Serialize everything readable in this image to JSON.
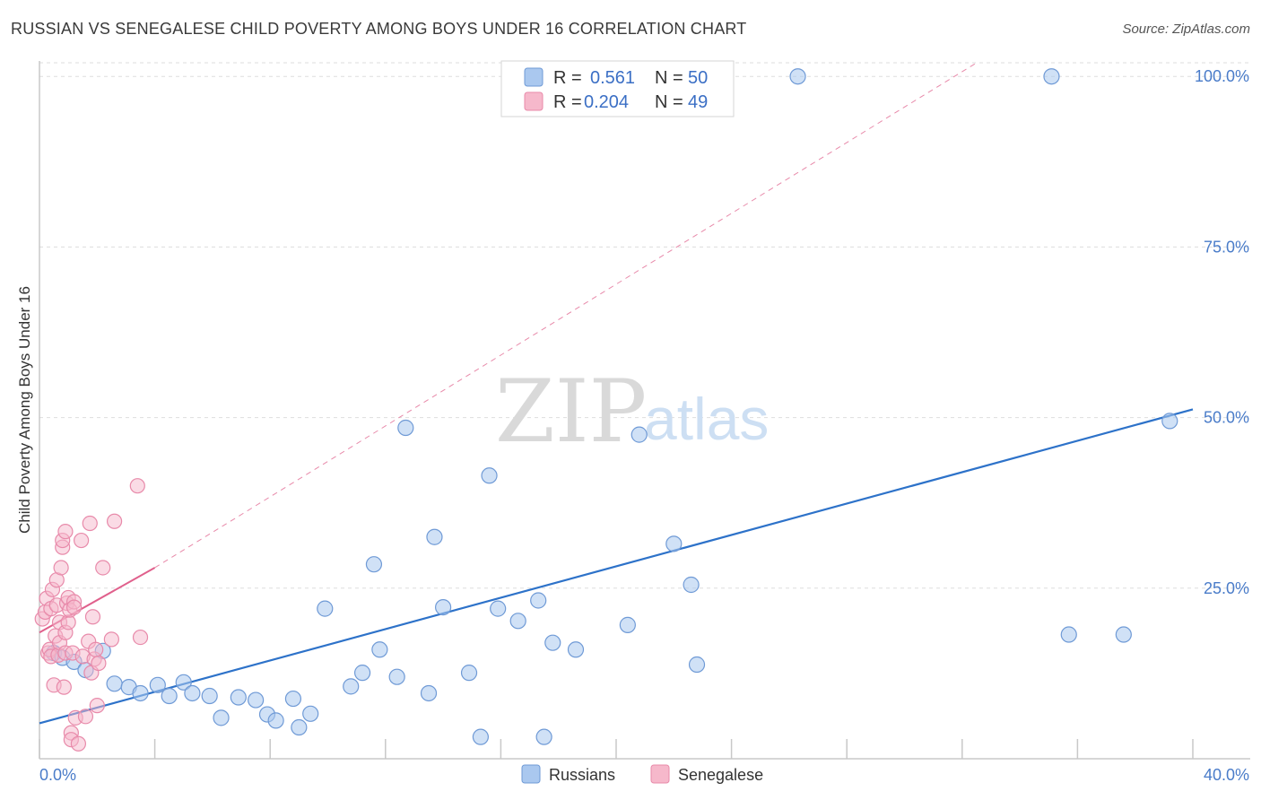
{
  "title": "RUSSIAN VS SENEGALESE CHILD POVERTY AMONG BOYS UNDER 16 CORRELATION CHART",
  "source": "Source: ZipAtlas.com",
  "watermark": {
    "zip": "ZIP",
    "atlas": "atlas"
  },
  "legend": {
    "r_label": "R =",
    "n_label": "N =",
    "rows": [
      {
        "series": "Russians",
        "r": "0.561",
        "n": "50"
      },
      {
        "series": "Senegalese",
        "r": "0.204",
        "n": "49"
      }
    ]
  },
  "bottom_legend": [
    "Russians",
    "Senegalese"
  ],
  "colors": {
    "russians_fill": "#aac8ef",
    "russians_stroke": "#6f9ad6",
    "russians_line": "#2d72c9",
    "senegalese_fill": "#f6b8cb",
    "senegalese_stroke": "#e88aaa",
    "senegalese_line": "#e0608c",
    "grid": "#dddddd",
    "tick_label": "#4a7cc9"
  },
  "chart_data": {
    "type": "scatter",
    "title": "RUSSIAN VS SENEGALESE CHILD POVERTY AMONG BOYS UNDER 16 CORRELATION CHART",
    "xlabel": "",
    "ylabel": "Child Poverty Among Boys Under 16",
    "xlim": [
      0,
      40
    ],
    "ylim": [
      0,
      102
    ],
    "x_tick_labels": [
      "0.0%",
      "40.0%"
    ],
    "y_ticks": [
      25,
      50,
      75,
      100
    ],
    "y_tick_labels": [
      "25.0%",
      "50.0%",
      "75.0%",
      "100.0%"
    ],
    "grid": true,
    "series": [
      {
        "name": "Russians",
        "points": [
          [
            0.5,
            15.5
          ],
          [
            0.8,
            14.8
          ],
          [
            1.2,
            14.2
          ],
          [
            1.6,
            13.0
          ],
          [
            2.2,
            15.8
          ],
          [
            2.6,
            11.0
          ],
          [
            3.1,
            10.5
          ],
          [
            3.5,
            9.6
          ],
          [
            4.1,
            10.8
          ],
          [
            4.5,
            9.2
          ],
          [
            5.0,
            11.2
          ],
          [
            5.3,
            9.6
          ],
          [
            5.9,
            9.2
          ],
          [
            6.3,
            6.0
          ],
          [
            6.9,
            9.0
          ],
          [
            7.5,
            8.6
          ],
          [
            7.9,
            6.5
          ],
          [
            8.2,
            5.6
          ],
          [
            8.8,
            8.8
          ],
          [
            9.0,
            4.6
          ],
          [
            9.4,
            6.6
          ],
          [
            9.9,
            22.0
          ],
          [
            10.8,
            10.6
          ],
          [
            11.2,
            12.6
          ],
          [
            11.6,
            28.5
          ],
          [
            11.8,
            16.0
          ],
          [
            12.4,
            12.0
          ],
          [
            12.7,
            48.5
          ],
          [
            13.5,
            9.6
          ],
          [
            13.7,
            32.5
          ],
          [
            14.0,
            22.2
          ],
          [
            14.9,
            12.6
          ],
          [
            15.3,
            3.2
          ],
          [
            15.6,
            41.5
          ],
          [
            15.9,
            22.0
          ],
          [
            16.6,
            20.2
          ],
          [
            17.3,
            23.2
          ],
          [
            17.5,
            3.2
          ],
          [
            17.8,
            17.0
          ],
          [
            18.6,
            16.0
          ],
          [
            20.4,
            19.6
          ],
          [
            20.8,
            47.5
          ],
          [
            22.0,
            31.5
          ],
          [
            22.6,
            25.5
          ],
          [
            22.8,
            13.8
          ],
          [
            26.3,
            100.0
          ],
          [
            35.1,
            100.0
          ],
          [
            35.7,
            18.2
          ],
          [
            37.6,
            18.2
          ],
          [
            39.2,
            49.5
          ]
        ],
        "trend": {
          "x": [
            0,
            40
          ],
          "y": [
            5.2,
            51.2
          ]
        }
      },
      {
        "name": "Senegalese",
        "points": [
          [
            0.1,
            20.5
          ],
          [
            0.2,
            21.5
          ],
          [
            0.25,
            23.5
          ],
          [
            0.3,
            15.5
          ],
          [
            0.35,
            16.0
          ],
          [
            0.4,
            15.0
          ],
          [
            0.4,
            22.0
          ],
          [
            0.45,
            24.8
          ],
          [
            0.5,
            10.8
          ],
          [
            0.55,
            18.0
          ],
          [
            0.6,
            22.5
          ],
          [
            0.6,
            26.2
          ],
          [
            0.65,
            15.2
          ],
          [
            0.7,
            17.0
          ],
          [
            0.7,
            20.0
          ],
          [
            0.75,
            28.0
          ],
          [
            0.8,
            31.0
          ],
          [
            0.8,
            32.0
          ],
          [
            0.85,
            10.5
          ],
          [
            0.9,
            33.3
          ],
          [
            0.9,
            15.5
          ],
          [
            0.9,
            18.5
          ],
          [
            0.95,
            22.8
          ],
          [
            1.0,
            23.6
          ],
          [
            1.0,
            20.0
          ],
          [
            1.05,
            21.8
          ],
          [
            1.1,
            3.8
          ],
          [
            1.1,
            2.8
          ],
          [
            1.15,
            15.5
          ],
          [
            1.2,
            23.0
          ],
          [
            1.2,
            22.2
          ],
          [
            1.25,
            6.0
          ],
          [
            1.35,
            2.2
          ],
          [
            1.45,
            32.0
          ],
          [
            1.5,
            15.0
          ],
          [
            1.6,
            6.2
          ],
          [
            1.7,
            17.2
          ],
          [
            1.75,
            34.5
          ],
          [
            1.8,
            12.6
          ],
          [
            1.85,
            20.8
          ],
          [
            1.9,
            14.6
          ],
          [
            1.95,
            16.0
          ],
          [
            2.0,
            7.8
          ],
          [
            2.05,
            14.0
          ],
          [
            2.2,
            28.0
          ],
          [
            2.5,
            17.5
          ],
          [
            2.6,
            34.8
          ],
          [
            3.4,
            40.0
          ],
          [
            3.5,
            17.8
          ]
        ],
        "trend": {
          "x": [
            0,
            4
          ],
          "y": [
            18.5,
            28.0
          ]
        },
        "trend_extended": {
          "x": [
            4,
            32.5
          ],
          "y": [
            28.0,
            102.0
          ]
        }
      }
    ]
  }
}
